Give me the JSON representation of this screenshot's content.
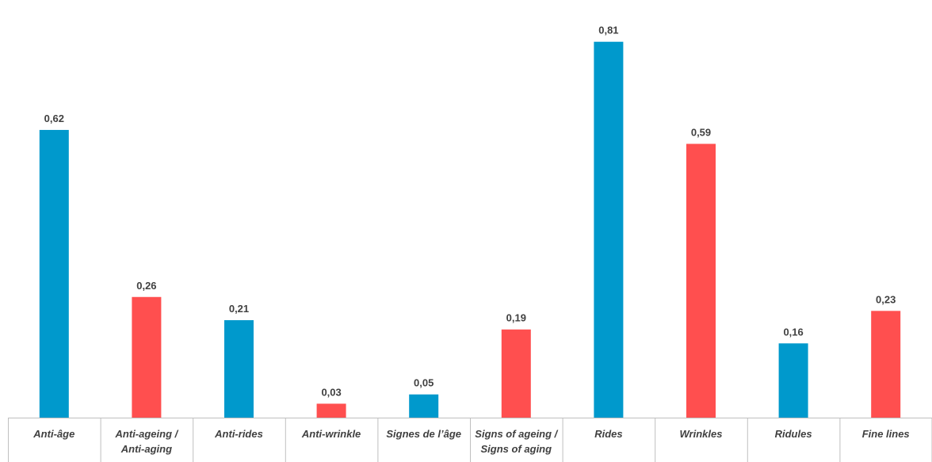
{
  "chart_data": {
    "type": "bar",
    "categories": [
      "Anti-âge",
      "Anti-ageing / Anti-aging",
      "Anti-rides",
      "Anti-wrinkle",
      "Signes de l’âge",
      "Signs of ageing / Signs of aging",
      "Rides",
      "Wrinkles",
      "Ridules",
      "Fine lines"
    ],
    "category_lines": [
      [
        "Anti-âge"
      ],
      [
        "Anti-ageing /",
        "Anti-aging"
      ],
      [
        "Anti-rides"
      ],
      [
        "Anti-wrinkle"
      ],
      [
        "Signes de l’âge"
      ],
      [
        "Signs of ageing /",
        "Signs of aging"
      ],
      [
        "Rides"
      ],
      [
        "Wrinkles"
      ],
      [
        "Ridules"
      ],
      [
        "Fine lines"
      ]
    ],
    "values": [
      0.62,
      0.26,
      0.21,
      0.03,
      0.05,
      0.19,
      0.81,
      0.59,
      0.16,
      0.23
    ],
    "value_labels": [
      "0,62",
      "0,26",
      "0,21",
      "0,03",
      "0,05",
      "0,19",
      "0,81",
      "0,59",
      "0,16",
      "0,23"
    ],
    "bar_colors": [
      "#0099CC",
      "#FF4F4F",
      "#0099CC",
      "#FF4F4F",
      "#0099CC",
      "#FF4F4F",
      "#0099CC",
      "#FF4F4F",
      "#0099CC",
      "#FF4F4F"
    ],
    "title": "",
    "xlabel": "",
    "ylabel": "",
    "ylim": [
      0,
      0.9
    ],
    "grid": false,
    "legend": "none"
  }
}
